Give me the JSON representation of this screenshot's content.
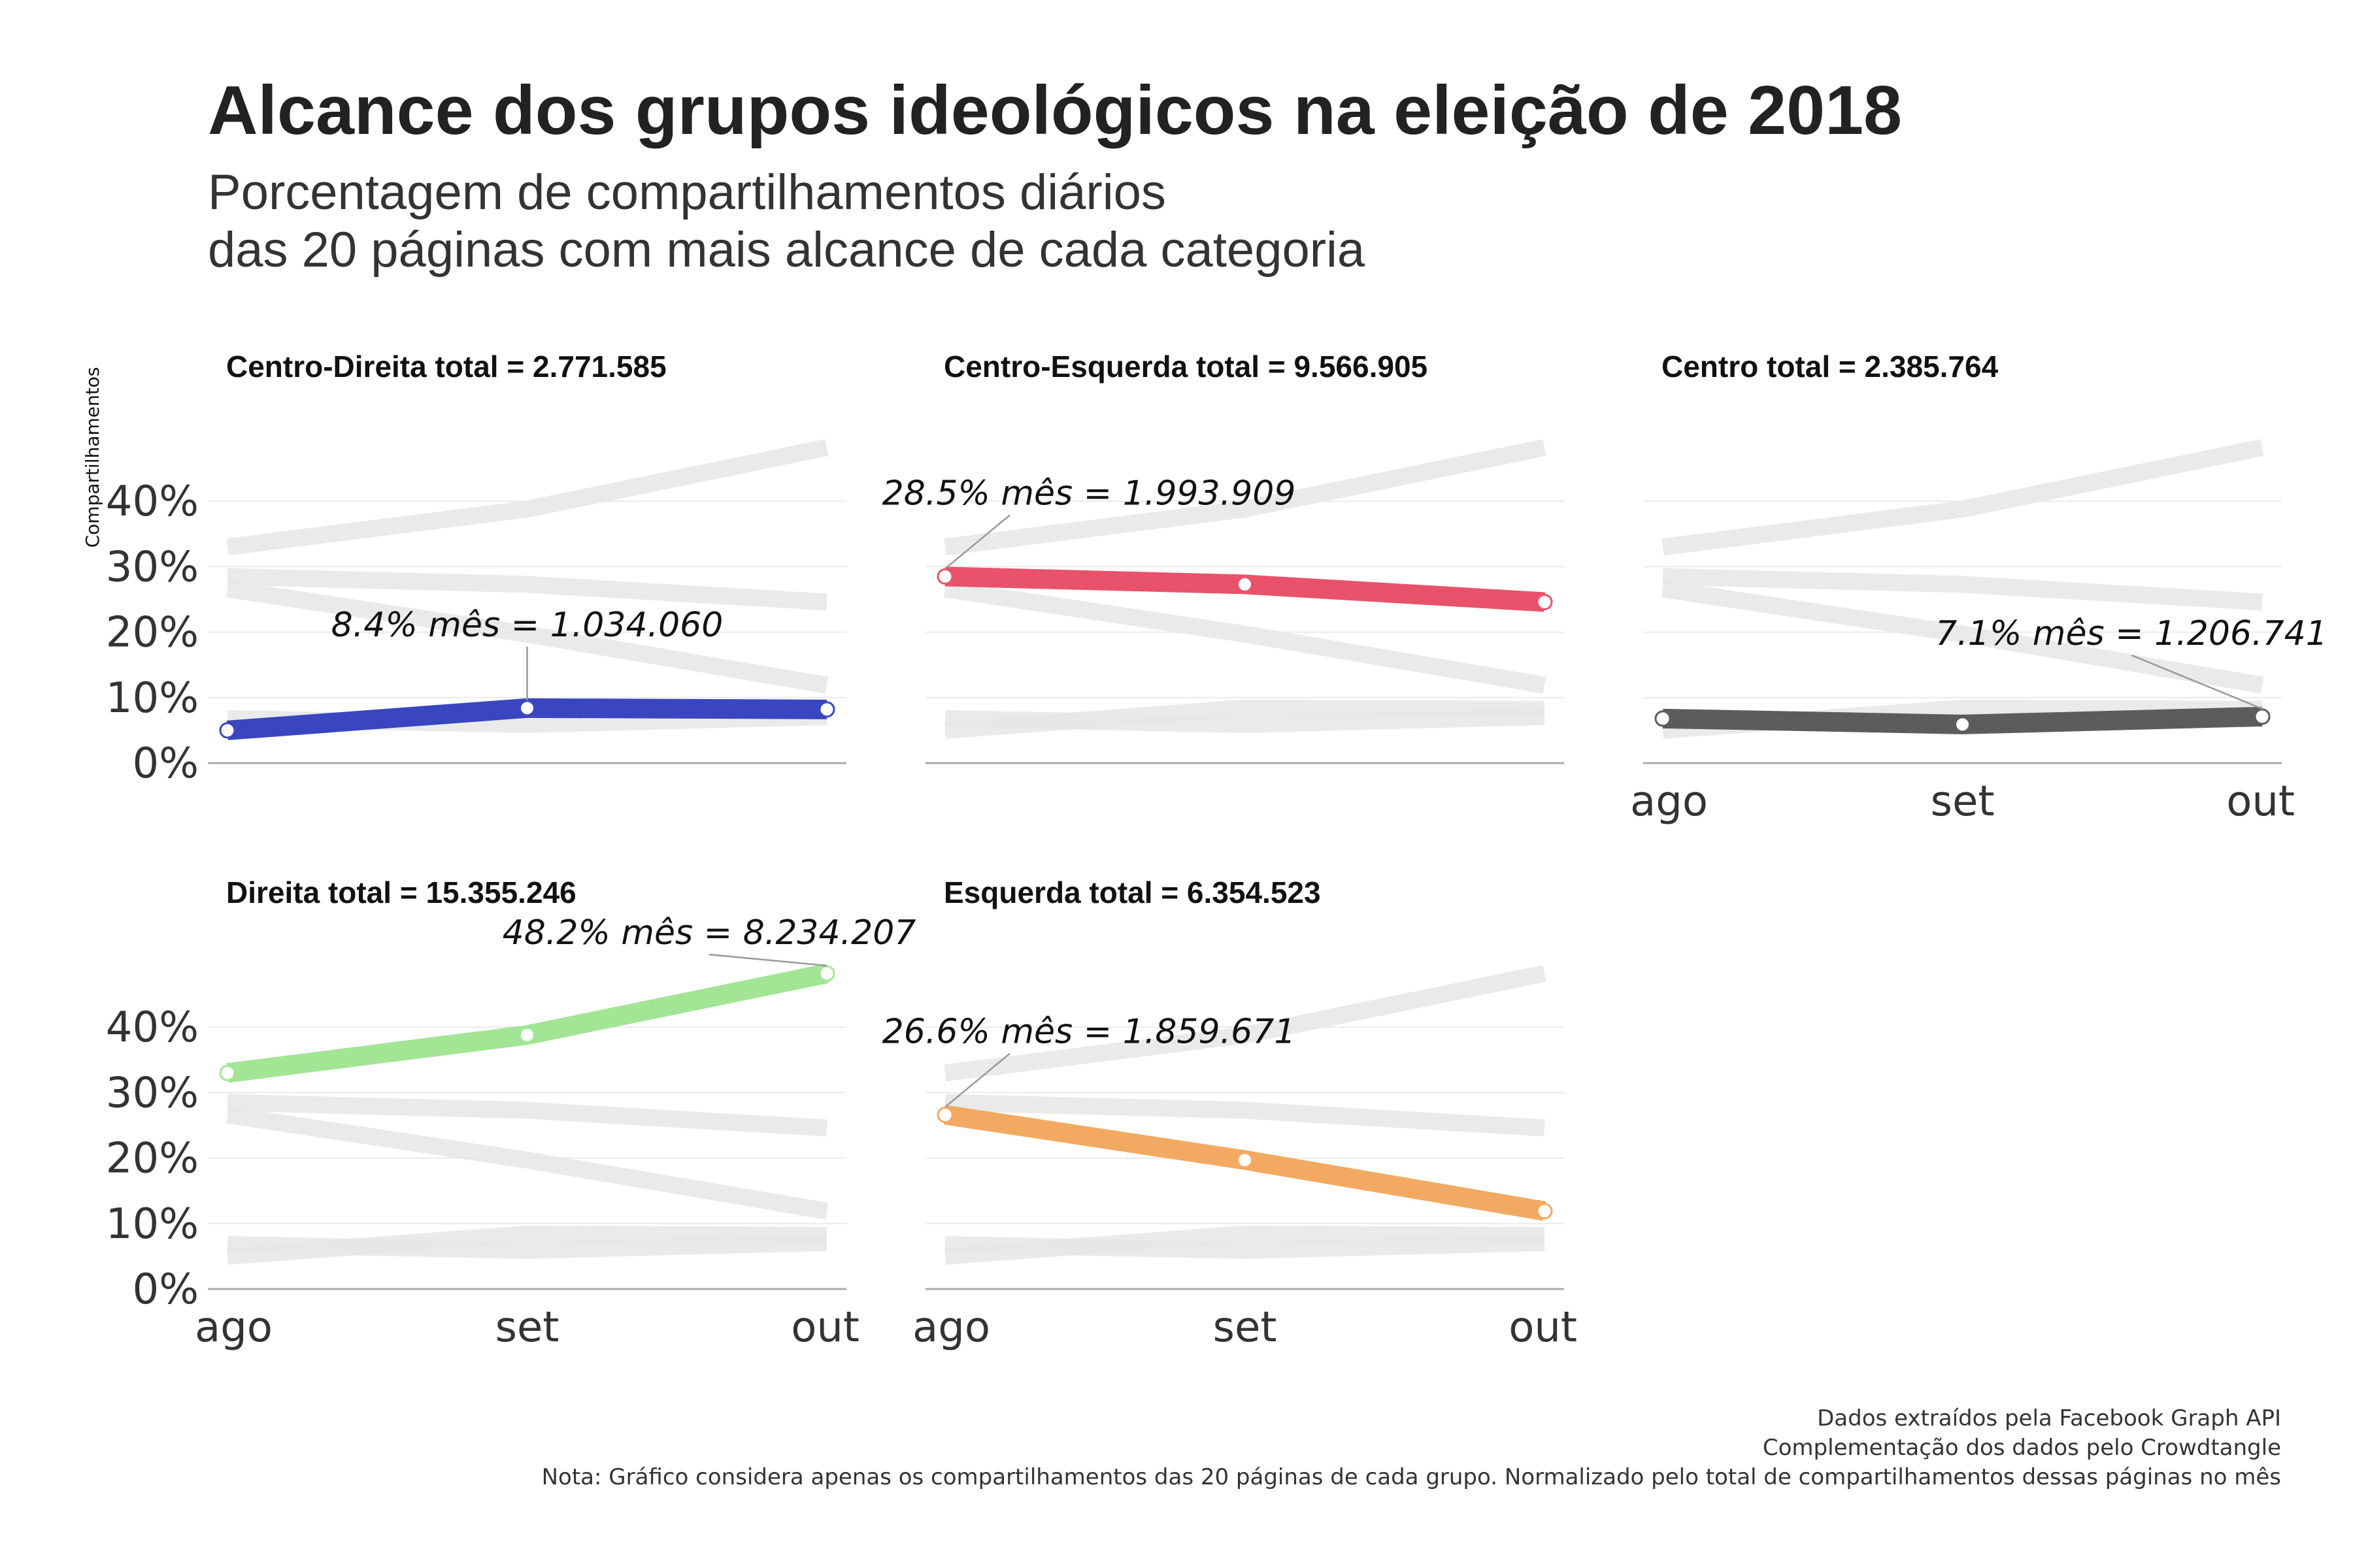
{
  "title": "Alcance dos grupos ideológicos na eleição de 2018",
  "subtitle_lines": [
    "Porcentagem de compartilhamentos diários",
    "das 20 páginas com mais alcance de cada categoria"
  ],
  "caption_lines": [
    "Dados extraídos pela Facebook Graph API",
    "Complementação dos dados pelo Crowdtangle",
    "Nota: Gráfico considera apenas os compartilhamentos das 20 páginas de cada grupo. Normalizado pelo total de compartilhamentos dessas páginas no mês"
  ],
  "chart_data": {
    "type": "line",
    "ylabel": "Compartilhamentos",
    "categories": [
      "ago",
      "set",
      "out"
    ],
    "ylim": [
      0,
      48
    ],
    "y_ticks": [
      "0%",
      "10%",
      "20%",
      "30%",
      "40%"
    ],
    "y_tick_values": [
      0,
      10,
      20,
      30,
      40
    ],
    "grid": true,
    "background_series_color": "#e6e6e6",
    "series": [
      {
        "name": "Centro-Direita",
        "panel_title": "Centro-Direita total = 2.771.585",
        "color": "#3a46bf",
        "values": [
          5.0,
          8.4,
          8.2
        ],
        "annotation": {
          "text": "8.4% mês = 1.034.060",
          "point_index": 1
        }
      },
      {
        "name": "Centro-Esquerda",
        "panel_title": "Centro-Esquerda total = 9.566.905",
        "color": "#e8526a",
        "values": [
          28.5,
          27.3,
          24.6
        ],
        "annotation": {
          "text": "28.5% mês = 1.993.909",
          "point_index": 0
        }
      },
      {
        "name": "Centro",
        "panel_title": "Centro total = 2.385.764",
        "color": "#5c5c5c",
        "values": [
          6.8,
          5.9,
          7.1
        ],
        "annotation": {
          "text": "7.1% mês = 1.206.741",
          "point_index": 2
        }
      },
      {
        "name": "Direita",
        "panel_title": "Direita total = 15.355.246",
        "color": "#a2e695",
        "values": [
          33.0,
          38.8,
          48.2
        ],
        "annotation": {
          "text": "48.2% mês = 8.234.207",
          "point_index": 2
        }
      },
      {
        "name": "Esquerda",
        "panel_title": "Esquerda total = 6.354.523",
        "color": "#f2aa62",
        "values": [
          26.6,
          19.7,
          11.9
        ],
        "annotation": {
          "text": "26.6% mês = 1.859.671",
          "point_index": 0
        }
      }
    ]
  }
}
